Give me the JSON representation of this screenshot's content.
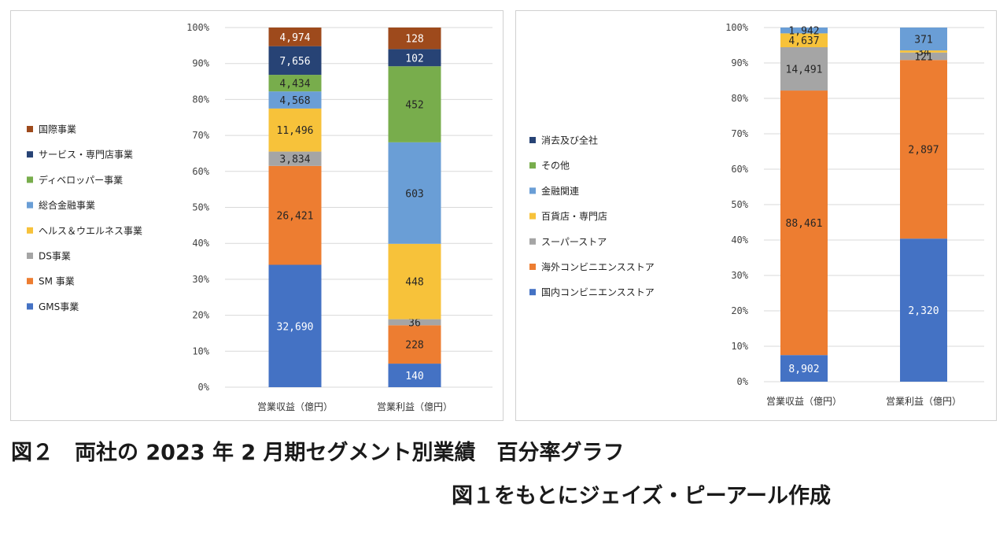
{
  "caption": {
    "line1": "図２　両社の 2023 年 2 月期セグメント別業績　百分率グラフ",
    "line2": "図１をもとにジェイズ・ピーアール作成"
  },
  "chart_data": [
    {
      "type": "bar",
      "stacked": "percent",
      "ylim": [
        0,
        100
      ],
      "yticks": [
        "0%",
        "10%",
        "20%",
        "30%",
        "40%",
        "50%",
        "60%",
        "70%",
        "80%",
        "90%",
        "100%"
      ],
      "categories": [
        "営業収益（億円）",
        "営業利益（億円）"
      ],
      "legend_position": "left",
      "series": [
        {
          "name": "GMS事業",
          "color": "#4472C4",
          "values": [
            32690,
            140
          ],
          "labels": [
            "32,690",
            "140"
          ]
        },
        {
          "name": "SM 事業",
          "color": "#ED7D31",
          "values": [
            26421,
            228
          ],
          "labels": [
            "26,421",
            "228"
          ]
        },
        {
          "name": "DS事業",
          "color": "#A5A5A5",
          "values": [
            3834,
            36
          ],
          "labels": [
            "3,834",
            "36"
          ]
        },
        {
          "name": "ヘルス＆ウエルネス事業",
          "color": "#F7C23A",
          "values": [
            11496,
            448
          ],
          "labels": [
            "11,496",
            "448"
          ]
        },
        {
          "name": "総合金融事業",
          "color": "#6A9ED6",
          "values": [
            4568,
            603
          ],
          "labels": [
            "4,568",
            "603"
          ]
        },
        {
          "name": "ディベロッパー事業",
          "color": "#78AD4C",
          "values": [
            4434,
            452
          ],
          "labels": [
            "4,434",
            "452"
          ]
        },
        {
          "name": "サービス・専門店事業",
          "color": "#274375",
          "values": [
            7656,
            102
          ],
          "labels": [
            "7,656",
            "102"
          ]
        },
        {
          "name": "国際事業",
          "color": "#9E4A1C",
          "values": [
            4974,
            128
          ],
          "labels": [
            "4,974",
            "128"
          ]
        }
      ]
    },
    {
      "type": "bar",
      "stacked": "percent",
      "ylim": [
        0,
        100
      ],
      "yticks": [
        "0%",
        "10%",
        "20%",
        "30%",
        "40%",
        "50%",
        "60%",
        "70%",
        "80%",
        "90%",
        "100%"
      ],
      "categories": [
        "営業収益（億円）",
        "営業利益（億円）"
      ],
      "legend_position": "left",
      "series": [
        {
          "name": "国内コンビニエンスストア",
          "color": "#4472C4",
          "values": [
            8902,
            2320
          ],
          "labels": [
            "8,902",
            "2,320"
          ]
        },
        {
          "name": "海外コンビニエンスストア",
          "color": "#ED7D31",
          "values": [
            88461,
            2897
          ],
          "labels": [
            "88,461",
            "2,897"
          ]
        },
        {
          "name": "スーパーストア",
          "color": "#A5A5A5",
          "values": [
            14491,
            121
          ],
          "labels": [
            "14,491",
            "121"
          ]
        },
        {
          "name": "百貨店・専門店",
          "color": "#F7C23A",
          "values": [
            4637,
            34
          ],
          "labels": [
            "4,637",
            "34"
          ]
        },
        {
          "name": "金融関連",
          "color": "#6A9ED6",
          "values": [
            1942,
            371
          ],
          "labels": [
            "1,942",
            "371"
          ]
        },
        {
          "name": "その他",
          "color": "#78AD4C",
          "values": [
            0,
            0
          ],
          "labels": [
            "",
            ""
          ]
        },
        {
          "name": "消去及び全社",
          "color": "#274375",
          "values": [
            0,
            0
          ],
          "labels": [
            "",
            ""
          ]
        }
      ]
    }
  ]
}
